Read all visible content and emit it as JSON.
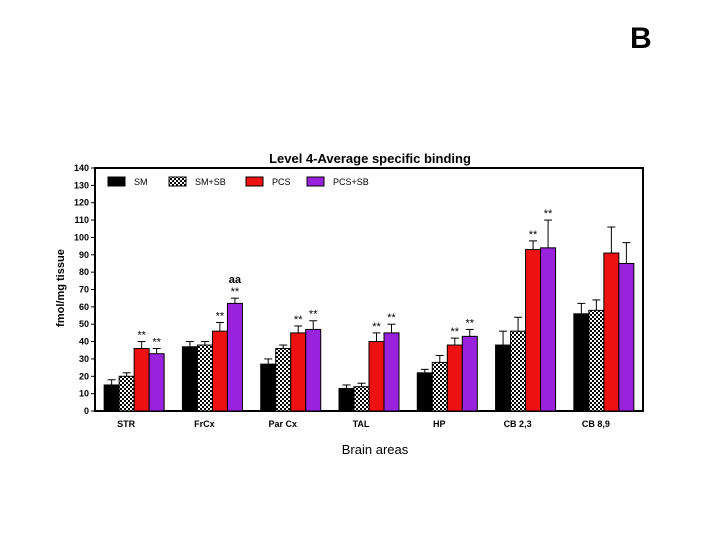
{
  "panel_label": "B",
  "chart_data": {
    "type": "bar",
    "title": "Level 4-Average specific binding",
    "xlabel": "Brain areas",
    "ylabel": "fmol/mg tissue",
    "ylim": [
      0,
      140
    ],
    "ytick_step": 10,
    "grid": false,
    "legend_placement": "top-left",
    "categories": [
      "STR",
      "FrCx",
      "Par Cx",
      "TAL",
      "HP",
      "CB 2,3",
      "CB 8,9"
    ],
    "series": [
      {
        "name": "SM",
        "pattern": "solid",
        "color": "#000000",
        "values": [
          15,
          37,
          27,
          13,
          22,
          38,
          56
        ],
        "errors": [
          3,
          3,
          3,
          2,
          2,
          8,
          6
        ],
        "annotations": [
          "",
          "",
          "",
          "",
          "",
          "",
          ""
        ]
      },
      {
        "name": "SM+SB",
        "pattern": "checker",
        "color": "#000000",
        "values": [
          20,
          38,
          36,
          14,
          28,
          46,
          58
        ],
        "errors": [
          2,
          2,
          2,
          2,
          4,
          8,
          6
        ],
        "annotations": [
          "",
          "",
          "",
          "",
          "",
          "",
          ""
        ]
      },
      {
        "name": "PCS",
        "pattern": "solid",
        "color": "#ee1111",
        "values": [
          36,
          46,
          45,
          40,
          38,
          93,
          91
        ],
        "errors": [
          4,
          5,
          4,
          5,
          4,
          5,
          15
        ],
        "annotations": [
          "**",
          "**",
          "**",
          "**",
          "**",
          "**",
          ""
        ]
      },
      {
        "name": "PCS+SB",
        "pattern": "solid",
        "color": "#9922dd",
        "values": [
          33,
          62,
          47,
          45,
          43,
          94,
          85
        ],
        "errors": [
          3,
          3,
          5,
          5,
          4,
          16,
          12
        ],
        "annotations": [
          "**",
          "**|aa",
          "**",
          "**",
          "**",
          "**",
          ""
        ]
      }
    ]
  }
}
